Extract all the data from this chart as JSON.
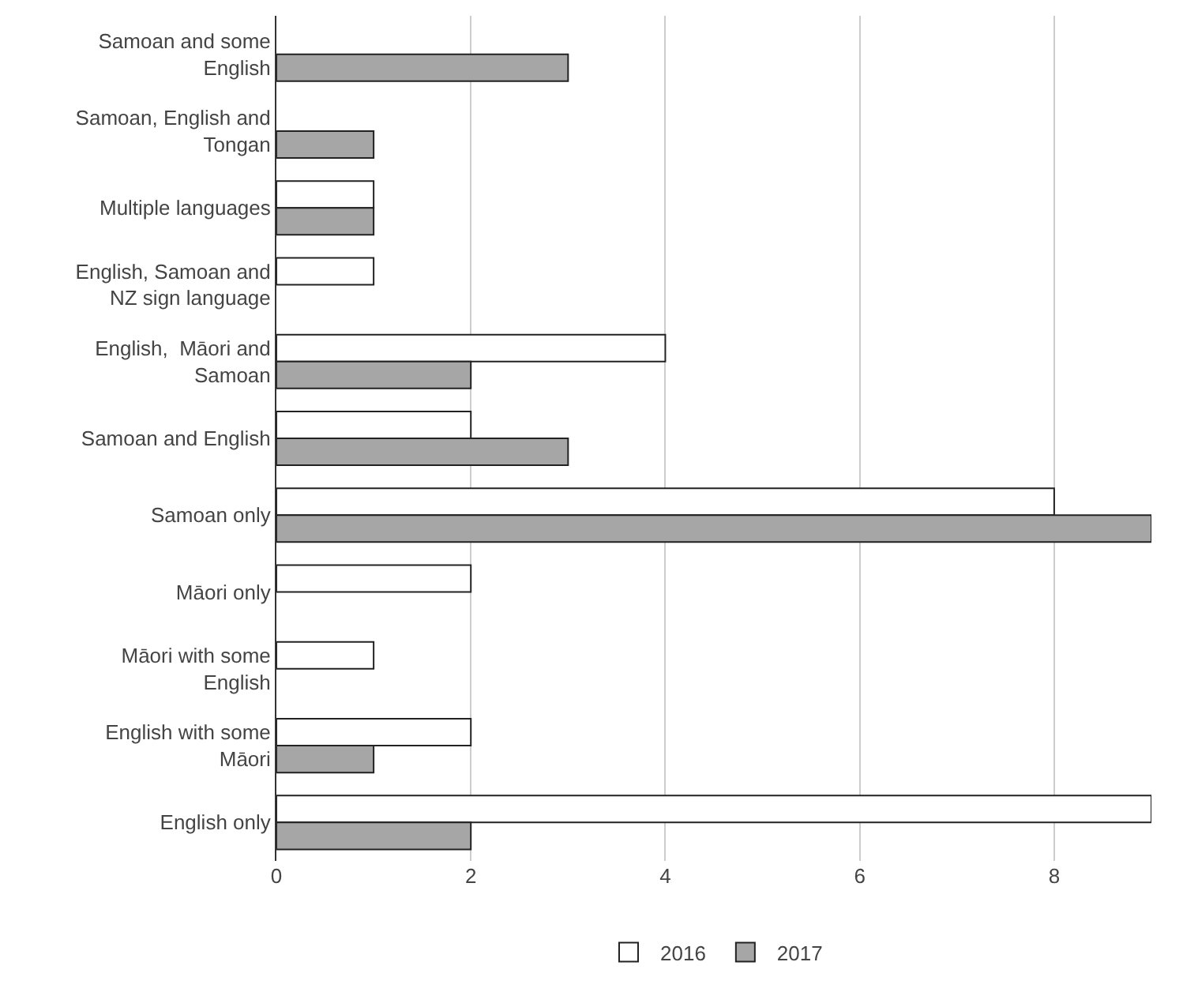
{
  "chart_data": {
    "type": "bar",
    "orientation": "horizontal",
    "categories": [
      "Samoan and some English",
      "Samoan, English and Tongan",
      "Multiple languages",
      "English, Samoan and NZ sign language",
      "English,  Māori and Samoan",
      "Samoan and English",
      "Samoan only",
      "Māori only",
      "Māori with some English",
      "English with some Māori",
      "English only"
    ],
    "series": [
      {
        "name": "2016",
        "color": "#ffffff",
        "values": [
          null,
          null,
          1,
          1,
          4,
          2,
          8,
          2,
          1,
          2,
          9
        ]
      },
      {
        "name": "2017",
        "color": "#a6a6a6",
        "values": [
          3,
          1,
          1,
          null,
          2,
          3,
          9,
          null,
          null,
          1,
          2
        ]
      }
    ],
    "xlim": [
      0,
      9
    ],
    "xticks": [
      0,
      2,
      4,
      6,
      8
    ],
    "grid": "x",
    "legend": "bottom"
  }
}
